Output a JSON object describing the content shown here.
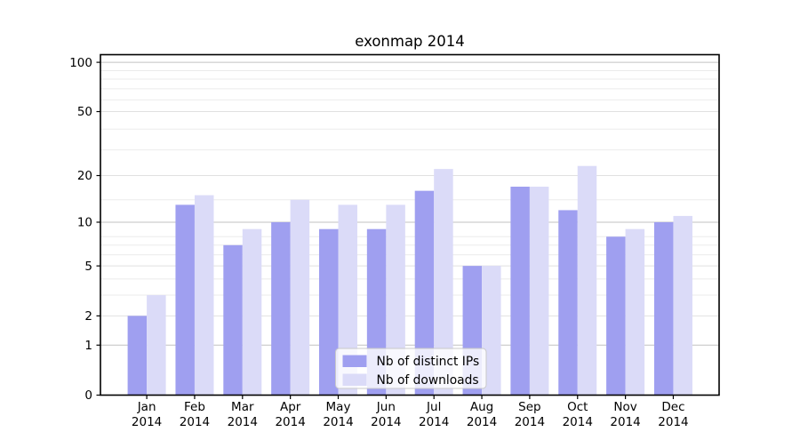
{
  "title": "exonmap 2014",
  "colors": {
    "background": "#ffffff",
    "axis": "#000000",
    "grid_major": "#c2c2c2",
    "grid_labeled_minor": "#e1e1e1",
    "grid_faint_minor": "#ebebeb",
    "series_ips": "#9f9ff0",
    "series_downloads": "#dbdbf8",
    "legend_border": "#c9c9c9"
  },
  "legend": {
    "items": [
      {
        "label": "Nb of distinct IPs",
        "swatch": "ips-swatch"
      },
      {
        "label": "Nb of downloads",
        "swatch": "downloads-swatch"
      }
    ]
  },
  "chart_data": {
    "type": "bar",
    "title": "exonmap 2014",
    "year": "2014",
    "months": [
      "Jan",
      "Feb",
      "Mar",
      "Apr",
      "May",
      "Jun",
      "Jul",
      "Aug",
      "Sep",
      "Oct",
      "Nov",
      "Dec"
    ],
    "categories": [
      "Jan 2014",
      "Feb 2014",
      "Mar 2014",
      "Apr 2014",
      "May 2014",
      "Jun 2014",
      "Jul 2014",
      "Aug 2014",
      "Sep 2014",
      "Oct 2014",
      "Nov 2014",
      "Dec 2014"
    ],
    "series": [
      {
        "name": "Nb of distinct IPs",
        "color": "#9f9ff0",
        "values": [
          2,
          13,
          7,
          10,
          9,
          9,
          16,
          5,
          17,
          12,
          8,
          10
        ]
      },
      {
        "name": "Nb of downloads",
        "color": "#dbdbf8",
        "values": [
          3,
          15,
          9,
          14,
          13,
          13,
          22,
          5,
          17,
          23,
          9,
          11
        ]
      }
    ],
    "ytick_labels": [
      "0",
      "1",
      "2",
      "5",
      "10",
      "20",
      "50",
      "100"
    ],
    "ytick_values": [
      0,
      1,
      2,
      5,
      10,
      20,
      50,
      100
    ],
    "yscale": "log10(1+v)",
    "ylim": [
      0,
      111
    ],
    "xlabel": "",
    "ylabel": "",
    "grid": "horizontal",
    "legend_position": "lower center"
  }
}
